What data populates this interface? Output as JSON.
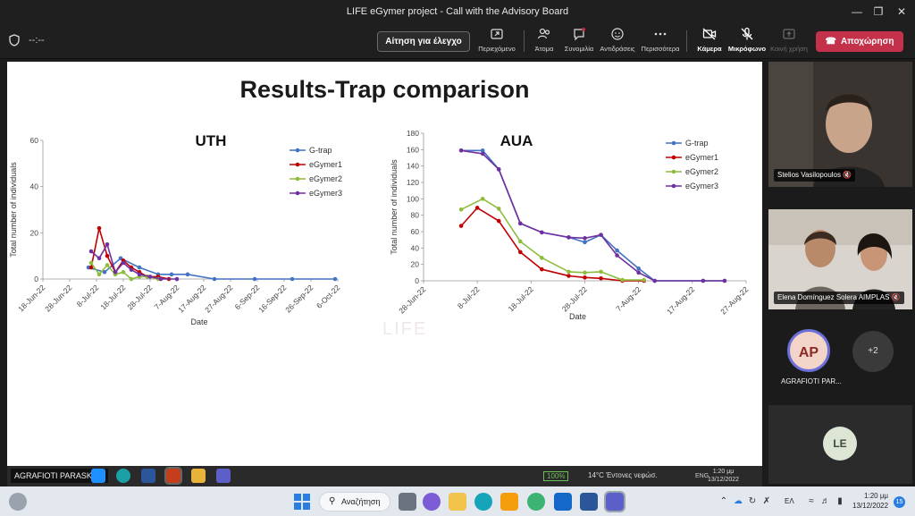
{
  "window": {
    "title": "LIFE eGymer project - Call with the Advisory Board",
    "controls": [
      "minimize",
      "maximize",
      "close"
    ]
  },
  "toolbar": {
    "timer": "--:--",
    "request_control": "Αίτηση για έλεγχο",
    "items": [
      {
        "id": "content",
        "label": "Περιεχόμενο",
        "icon": "share-screen-icon"
      },
      {
        "id": "people",
        "label": "Άτομα",
        "icon": "people-icon"
      },
      {
        "id": "chat",
        "label": "Συνομιλία",
        "icon": "chat-icon"
      },
      {
        "id": "reactions",
        "label": "Αντιδράσεις",
        "icon": "reaction-icon"
      },
      {
        "id": "more",
        "label": "Περισσότερα",
        "icon": "more-icon"
      },
      {
        "id": "camera",
        "label": "Κάμερα",
        "icon": "camera-off-icon"
      },
      {
        "id": "mic",
        "label": "Μικρόφωνο",
        "icon": "mic-off-icon"
      },
      {
        "id": "share",
        "label": "Κοινή χρήση",
        "icon": "share-tray-icon"
      }
    ],
    "leave": "Αποχώρηση"
  },
  "slide": {
    "title": "Results-Trap comparison",
    "watermark": "LIFE"
  },
  "colors": {
    "G-trap": "#4472c4",
    "eGymer1": "#c00000",
    "eGymer2": "#8fbc3f",
    "eGymer3": "#7030a0",
    "leave": "#c4314b"
  },
  "chart_data": [
    {
      "type": "line",
      "title": "UTH",
      "xlabel": "Date",
      "ylabel": "Total number of individuals",
      "ylim": [
        0,
        60
      ],
      "yticks": [
        0,
        20,
        40,
        60
      ],
      "xticks": [
        "18-Jun-22",
        "28-Jun-22",
        "8-Jul-22",
        "18-Jul-22",
        "28-Jul-22",
        "7-Aug-22",
        "17-Aug-22",
        "27-Aug-22",
        "6-Sep-22",
        "16-Sep-22",
        "26-Sep-22",
        "6-Oct-22"
      ],
      "legend_position": "top-right",
      "series": [
        {
          "name": "G-trap",
          "x": [
            "5-Jul-22",
            "11-Jul-22",
            "17-Jul-22",
            "24-Jul-22",
            "31-Jul-22",
            "5-Aug-22",
            "11-Aug-22",
            "21-Aug-22",
            "5-Sep-22",
            "19-Sep-22",
            "5-Oct-22"
          ],
          "values": [
            5,
            3,
            9,
            5,
            2,
            2,
            2,
            0,
            0,
            0,
            0
          ]
        },
        {
          "name": "eGymer1",
          "x": [
            "6-Jul-22",
            "9-Jul-22",
            "12-Jul-22",
            "15-Jul-22",
            "18-Jul-22",
            "21-Jul-22",
            "24-Jul-22",
            "27-Jul-22",
            "31-Jul-22",
            "4-Aug-22"
          ],
          "values": [
            5,
            22,
            10,
            3,
            8,
            5,
            3,
            1,
            1,
            0
          ]
        },
        {
          "name": "eGymer2",
          "x": [
            "6-Jul-22",
            "9-Jul-22",
            "12-Jul-22",
            "15-Jul-22",
            "18-Jul-22",
            "21-Jul-22",
            "24-Jul-22",
            "27-Jul-22",
            "31-Jul-22"
          ],
          "values": [
            7,
            2,
            6,
            2,
            3,
            0,
            1,
            1,
            0
          ]
        },
        {
          "name": "eGymer3",
          "x": [
            "6-Jul-22",
            "9-Jul-22",
            "12-Jul-22",
            "15-Jul-22",
            "18-Jul-22",
            "21-Jul-22",
            "24-Jul-22",
            "28-Jul-22",
            "1-Aug-22",
            "7-Aug-22"
          ],
          "values": [
            12,
            9,
            15,
            3,
            7,
            4,
            2,
            1,
            0,
            0
          ]
        }
      ]
    },
    {
      "type": "line",
      "title": "AUA",
      "xlabel": "Date",
      "ylabel": "Total number of individuals",
      "ylim": [
        0,
        180
      ],
      "yticks": [
        0,
        20,
        40,
        60,
        80,
        100,
        120,
        140,
        160,
        180
      ],
      "xticks": [
        "28-Jun-22",
        "8-Jul-22",
        "18-Jul-22",
        "28-Jul-22",
        "7-Aug-22",
        "17-Aug-22",
        "27-Aug-22"
      ],
      "legend_position": "top-right",
      "series": [
        {
          "name": "G-trap",
          "x": [
            "5-Jul-22",
            "9-Jul-22",
            "12-Jul-22",
            "16-Jul-22",
            "20-Jul-22",
            "25-Jul-22",
            "28-Jul-22",
            "31-Jul-22",
            "3-Aug-22",
            "7-Aug-22",
            "10-Aug-22",
            "19-Aug-22",
            "23-Aug-22"
          ],
          "values": [
            159,
            159,
            136,
            70,
            59,
            53,
            47,
            56,
            37,
            15,
            0,
            0,
            0
          ]
        },
        {
          "name": "eGymer1",
          "x": [
            "5-Jul-22",
            "8-Jul-22",
            "12-Jul-22",
            "16-Jul-22",
            "20-Jul-22",
            "25-Jul-22",
            "28-Jul-22",
            "31-Jul-22",
            "4-Aug-22",
            "8-Aug-22"
          ],
          "values": [
            67,
            89,
            73,
            35,
            14,
            6,
            4,
            3,
            0,
            0
          ]
        },
        {
          "name": "eGymer2",
          "x": [
            "5-Jul-22",
            "9-Jul-22",
            "12-Jul-22",
            "16-Jul-22",
            "20-Jul-22",
            "25-Jul-22",
            "28-Jul-22",
            "31-Jul-22",
            "4-Aug-22",
            "8-Aug-22"
          ],
          "values": [
            87,
            100,
            88,
            48,
            28,
            11,
            10,
            11,
            1,
            1
          ]
        },
        {
          "name": "eGymer3",
          "x": [
            "5-Jul-22",
            "9-Jul-22",
            "12-Jul-22",
            "16-Jul-22",
            "20-Jul-22",
            "25-Jul-22",
            "28-Jul-22",
            "31-Jul-22",
            "3-Aug-22",
            "7-Aug-22",
            "10-Aug-22",
            "19-Aug-22",
            "23-Aug-22"
          ],
          "values": [
            159,
            155,
            136,
            70,
            59,
            53,
            52,
            56,
            31,
            10,
            0,
            0,
            0
          ]
        }
      ]
    }
  ],
  "presenter_bar": {
    "name": "AGRAFIOTI PARASKEVI",
    "battery": "100%",
    "weather": "14°C  Έντονες νεφώσ.",
    "lang": "ENG",
    "time": "1:20 μμ",
    "date": "13/12/2022"
  },
  "participants": [
    {
      "name": "Stelios Vasilopoulos",
      "muted": true
    },
    {
      "name": "Elena Domínguez Solera AIMPLAS",
      "muted": true
    },
    {
      "name": "AGRAFIOTI PAR...",
      "initials": "AP"
    },
    {
      "overflow": "+2"
    },
    {
      "initials": "LE"
    }
  ],
  "taskbar": {
    "search": "Αναζήτηση",
    "lang": "ΕΛ",
    "time": "1:20 μμ",
    "date": "13/12/2022",
    "badge": "15"
  }
}
